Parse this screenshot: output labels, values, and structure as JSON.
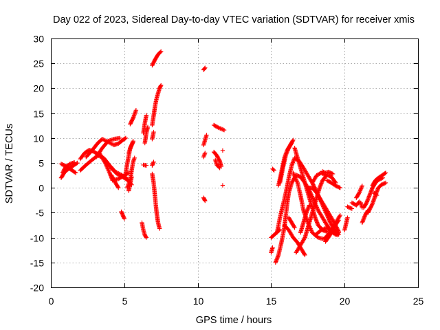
{
  "chart_data": {
    "type": "scatter",
    "title": "Day 022 of 2023, Sidereal Day-to-day VTEC variation (SDTVAR) for receiver xmis",
    "xlabel": "GPS time / hours",
    "ylabel": "SDTVAR / TECUs",
    "xlim": [
      0,
      25
    ],
    "ylim": [
      -20,
      30
    ],
    "xticks": [
      "0",
      "5",
      "10",
      "15",
      "20",
      "25"
    ],
    "yticks": [
      "-20",
      "-15",
      "-10",
      "-5",
      "0",
      "5",
      "10",
      "15",
      "20",
      "25",
      "30"
    ],
    "grid": true,
    "marker": "+",
    "color": "#ff0000",
    "segments": [
      [
        [
          0.7,
          2.0
        ],
        [
          0.9,
          3.0
        ],
        [
          1.1,
          3.6
        ],
        [
          1.4,
          4.2
        ],
        [
          1.8,
          5.0
        ]
      ],
      [
        [
          0.7,
          4.8
        ],
        [
          1.0,
          4.4
        ],
        [
          1.3,
          3.8
        ],
        [
          1.7,
          3.0
        ]
      ],
      [
        [
          0.8,
          3.0
        ],
        [
          1.0,
          4.2
        ],
        [
          1.3,
          4.8
        ],
        [
          1.6,
          5.1
        ]
      ],
      [
        [
          2.0,
          5.8
        ],
        [
          2.3,
          7.0
        ],
        [
          2.6,
          7.6
        ],
        [
          2.9,
          7.3
        ],
        [
          3.3,
          6.6
        ],
        [
          3.7,
          5.6
        ],
        [
          4.1,
          4.0
        ],
        [
          4.5,
          2.8
        ],
        [
          5.0,
          2.0
        ],
        [
          5.2,
          1.6
        ]
      ],
      [
        [
          2.0,
          3.5
        ],
        [
          2.4,
          4.6
        ],
        [
          2.8,
          5.6
        ],
        [
          3.2,
          6.5
        ],
        [
          3.6,
          6.0
        ],
        [
          4.0,
          4.5
        ],
        [
          4.4,
          3.2
        ],
        [
          4.8,
          2.6
        ],
        [
          5.2,
          1.8
        ],
        [
          5.5,
          0.6
        ]
      ],
      [
        [
          2.4,
          6.2
        ],
        [
          2.8,
          7.5
        ],
        [
          3.2,
          9.0
        ],
        [
          3.5,
          9.8
        ],
        [
          3.9,
          9.2
        ],
        [
          4.3,
          8.6
        ],
        [
          4.6,
          8.9
        ],
        [
          4.9,
          9.6
        ],
        [
          5.1,
          10.0
        ]
      ],
      [
        [
          3.3,
          7.0
        ],
        [
          3.7,
          5.0
        ],
        [
          4.0,
          3.0
        ],
        [
          4.2,
          1.5
        ],
        [
          4.6,
          1.8
        ],
        [
          5.0,
          2.5
        ],
        [
          5.3,
          3.0
        ]
      ],
      [
        [
          3.1,
          6.2
        ],
        [
          3.5,
          8.0
        ],
        [
          3.9,
          9.4
        ],
        [
          4.3,
          9.8
        ],
        [
          4.7,
          10.0
        ]
      ],
      [
        [
          4.1,
          2.6
        ],
        [
          4.4,
          1.0
        ],
        [
          4.6,
          0.0
        ]
      ],
      [
        [
          4.8,
          -4.8
        ],
        [
          4.9,
          -5.5
        ],
        [
          5.0,
          -6.2
        ]
      ],
      [
        [
          5.1,
          3.0
        ],
        [
          5.2,
          4.8
        ],
        [
          5.3,
          6.4
        ],
        [
          5.4,
          8.0
        ],
        [
          5.5,
          8.6
        ],
        [
          5.6,
          9.2
        ]
      ],
      [
        [
          5.2,
          0.0
        ],
        [
          5.4,
          1.6
        ],
        [
          5.5,
          3.5
        ],
        [
          5.6,
          5.2
        ],
        [
          5.7,
          6.0
        ]
      ],
      [
        [
          5.3,
          -0.6
        ],
        [
          5.4,
          0.8
        ],
        [
          5.5,
          2.2
        ]
      ],
      [
        [
          5.3,
          7.0
        ],
        [
          5.5,
          8.6
        ],
        [
          5.6,
          9.4
        ]
      ],
      [
        [
          5.4,
          12.8
        ],
        [
          5.6,
          14.0
        ],
        [
          5.8,
          15.6
        ]
      ],
      [
        [
          6.2,
          -7.0
        ],
        [
          6.3,
          -8.5
        ],
        [
          6.4,
          -9.5
        ],
        [
          6.5,
          -10.0
        ]
      ],
      [
        [
          6.3,
          4.6
        ],
        [
          6.5,
          4.5
        ]
      ],
      [
        [
          6.3,
          11.0
        ],
        [
          6.4,
          13.0
        ],
        [
          6.5,
          14.6
        ]
      ],
      [
        [
          6.4,
          9.0
        ],
        [
          6.5,
          11.0
        ],
        [
          6.6,
          12.2
        ]
      ],
      [
        [
          6.9,
          2.8
        ],
        [
          7.0,
          1.0
        ],
        [
          7.1,
          -2.0
        ],
        [
          7.2,
          -5.0
        ],
        [
          7.3,
          -7.0
        ],
        [
          7.4,
          -8.2
        ]
      ],
      [
        [
          6.9,
          12.6
        ],
        [
          7.0,
          14.5
        ],
        [
          7.1,
          16.5
        ],
        [
          7.2,
          18.0
        ],
        [
          7.3,
          19.0
        ],
        [
          7.4,
          20.0
        ],
        [
          7.5,
          20.6
        ]
      ],
      [
        [
          6.9,
          4.5
        ],
        [
          7.0,
          5.2
        ]
      ],
      [
        [
          6.9,
          9.8
        ],
        [
          7.0,
          11.2
        ]
      ],
      [
        [
          6.9,
          24.6
        ],
        [
          7.1,
          25.8
        ],
        [
          7.3,
          26.8
        ],
        [
          7.5,
          27.4
        ]
      ],
      [
        [
          10.4,
          -2.0
        ],
        [
          10.5,
          -2.6
        ]
      ],
      [
        [
          10.4,
          6.2
        ],
        [
          10.5,
          7.0
        ]
      ],
      [
        [
          10.4,
          8.6
        ],
        [
          10.5,
          9.6
        ],
        [
          10.6,
          10.6
        ]
      ],
      [
        [
          10.4,
          23.7
        ],
        [
          10.5,
          24.1
        ]
      ],
      [
        [
          11.1,
          12.6
        ],
        [
          11.4,
          12.1
        ],
        [
          11.8,
          11.6
        ]
      ],
      [
        [
          11.1,
          7.2
        ],
        [
          11.3,
          6.5
        ],
        [
          11.5,
          5.4
        ],
        [
          11.6,
          4.3
        ]
      ],
      [
        [
          11.2,
          5.6
        ],
        [
          11.3,
          4.6
        ],
        [
          11.5,
          4.0
        ]
      ],
      [
        [
          11.7,
          7.5
        ]
      ],
      [
        [
          11.7,
          0.5
        ]
      ],
      [
        [
          15.0,
          -13.0
        ],
        [
          15.1,
          -12.0
        ]
      ],
      [
        [
          15.0,
          -10.0
        ],
        [
          15.3,
          -9.2
        ],
        [
          15.6,
          -8.4
        ]
      ],
      [
        [
          15.1,
          3.8
        ],
        [
          15.2,
          3.5
        ]
      ],
      [
        [
          15.3,
          -15.0
        ],
        [
          15.5,
          -13.5
        ],
        [
          15.7,
          -11.0
        ],
        [
          15.9,
          -8.0
        ],
        [
          16.0,
          -5.5
        ],
        [
          16.1,
          -3.0
        ],
        [
          16.2,
          -1.0
        ],
        [
          16.4,
          1.0
        ],
        [
          16.7,
          2.6
        ],
        [
          17.0,
          2.2
        ],
        [
          17.3,
          1.0
        ],
        [
          17.6,
          -0.5
        ],
        [
          17.9,
          -2.5
        ],
        [
          18.2,
          -4.5
        ],
        [
          18.5,
          -6.0
        ],
        [
          18.8,
          -7.5
        ],
        [
          19.1,
          -8.8
        ],
        [
          19.4,
          -9.4
        ],
        [
          19.6,
          -9.0
        ]
      ],
      [
        [
          15.4,
          -9.0
        ],
        [
          15.6,
          -6.0
        ],
        [
          15.8,
          -3.5
        ],
        [
          16.0,
          -1.0
        ],
        [
          16.2,
          2.0
        ],
        [
          16.4,
          4.5
        ],
        [
          16.6,
          6.0
        ],
        [
          16.9,
          5.4
        ],
        [
          17.2,
          4.0
        ],
        [
          17.5,
          2.5
        ],
        [
          17.8,
          1.0
        ],
        [
          18.1,
          -0.8
        ],
        [
          18.4,
          -2.8
        ],
        [
          18.7,
          -4.8
        ],
        [
          19.0,
          -6.8
        ],
        [
          19.3,
          -8.4
        ],
        [
          19.6,
          -9.4
        ]
      ],
      [
        [
          15.5,
          0.5
        ],
        [
          15.7,
          3.2
        ],
        [
          15.9,
          6.0
        ],
        [
          16.1,
          7.6
        ],
        [
          16.3,
          8.6
        ],
        [
          16.5,
          9.6
        ]
      ],
      [
        [
          15.6,
          1.0
        ],
        [
          15.8,
          4.0
        ],
        [
          16.0,
          6.6
        ],
        [
          16.2,
          8.0
        ],
        [
          16.4,
          9.0
        ]
      ],
      [
        [
          15.9,
          -7.5
        ],
        [
          16.2,
          -8.5
        ],
        [
          16.5,
          -10.0
        ],
        [
          16.8,
          -11.0
        ],
        [
          17.1,
          -12.5
        ],
        [
          17.3,
          -13.5
        ]
      ],
      [
        [
          16.2,
          -6.0
        ],
        [
          16.4,
          -7.0
        ],
        [
          16.6,
          -8.0
        ]
      ],
      [
        [
          16.5,
          3.0
        ],
        [
          16.8,
          1.0
        ],
        [
          17.0,
          -1.5
        ],
        [
          17.2,
          -4.5
        ],
        [
          17.5,
          -7.0
        ],
        [
          17.8,
          -9.0
        ],
        [
          18.2,
          -10.0
        ],
        [
          18.6,
          -10.3
        ],
        [
          19.0,
          -9.0
        ],
        [
          19.4,
          -7.0
        ],
        [
          19.7,
          -5.5
        ]
      ],
      [
        [
          16.6,
          8.0
        ],
        [
          16.8,
          6.0
        ],
        [
          17.0,
          4.0
        ],
        [
          17.2,
          2.0
        ],
        [
          17.4,
          0.0
        ],
        [
          17.6,
          -2.0
        ],
        [
          17.8,
          -4.0
        ],
        [
          18.0,
          -6.0
        ],
        [
          18.2,
          -7.5
        ],
        [
          18.5,
          -8.5
        ],
        [
          18.8,
          -8.8
        ],
        [
          19.2,
          -9.0
        ]
      ],
      [
        [
          16.7,
          -13.0
        ],
        [
          17.0,
          -11.5
        ],
        [
          17.3,
          -10.0
        ],
        [
          17.5,
          -8.0
        ],
        [
          17.7,
          -6.0
        ],
        [
          17.9,
          -4.0
        ],
        [
          18.1,
          -2.0
        ],
        [
          18.3,
          0.0
        ],
        [
          18.5,
          1.5
        ],
        [
          18.8,
          2.6
        ],
        [
          19.1,
          2.2
        ],
        [
          19.4,
          1.0
        ]
      ],
      [
        [
          17.0,
          -9.0
        ],
        [
          17.2,
          -7.0
        ],
        [
          17.4,
          -5.0
        ],
        [
          17.6,
          -3.5
        ]
      ],
      [
        [
          17.5,
          0.0
        ],
        [
          17.8,
          0.0
        ],
        [
          18.1,
          -1.0
        ],
        [
          18.4,
          -2.5
        ],
        [
          18.7,
          -4.0
        ],
        [
          19.0,
          -5.5
        ],
        [
          19.3,
          -7.0
        ],
        [
          19.6,
          -8.8
        ]
      ],
      [
        [
          17.8,
          1.0
        ],
        [
          18.1,
          2.5
        ],
        [
          18.4,
          3.0
        ],
        [
          18.7,
          2.6
        ]
      ],
      [
        [
          18.0,
          -9.5
        ],
        [
          18.4,
          -8.5
        ],
        [
          18.8,
          -8.0
        ],
        [
          19.2,
          -8.8
        ],
        [
          19.5,
          -9.5
        ]
      ],
      [
        [
          18.7,
          -10.8
        ],
        [
          19.0,
          -9.5
        ],
        [
          19.3,
          -7.8
        ],
        [
          19.6,
          -6.5
        ]
      ],
      [
        [
          18.8,
          1.5
        ],
        [
          19.1,
          1.0
        ],
        [
          19.4,
          0.4
        ],
        [
          19.7,
          0.0
        ]
      ],
      [
        [
          18.5,
          3.3
        ],
        [
          18.7,
          3.0
        ],
        [
          18.9,
          3.2
        ],
        [
          19.2,
          2.8
        ]
      ],
      [
        [
          20.0,
          -8.5
        ],
        [
          20.2,
          -6.0
        ]
      ],
      [
        [
          20.2,
          -3.8
        ],
        [
          20.5,
          -4.2
        ]
      ],
      [
        [
          20.5,
          -3.0
        ],
        [
          20.8,
          -3.5
        ],
        [
          21.0,
          -2.8
        ]
      ],
      [
        [
          20.8,
          -2.0
        ],
        [
          21.0,
          -1.0
        ],
        [
          21.2,
          0.4
        ]
      ],
      [
        [
          21.1,
          -3.0
        ],
        [
          21.2,
          -4.0
        ]
      ],
      [
        [
          21.3,
          -4.0
        ],
        [
          21.5,
          -3.0
        ],
        [
          21.7,
          -1.5
        ],
        [
          21.9,
          0.0
        ],
        [
          22.1,
          1.0
        ],
        [
          22.3,
          1.6
        ],
        [
          22.6,
          2.0
        ]
      ],
      [
        [
          21.6,
          -5.0
        ],
        [
          21.9,
          -3.2
        ],
        [
          22.1,
          -1.5
        ],
        [
          22.3,
          0.0
        ],
        [
          22.5,
          0.6
        ],
        [
          22.8,
          1.0
        ]
      ],
      [
        [
          21.9,
          0.5
        ],
        [
          22.1,
          1.5
        ],
        [
          22.3,
          2.0
        ],
        [
          22.6,
          2.6
        ],
        [
          22.8,
          3.0
        ]
      ],
      [
        [
          22.0,
          -1.0
        ],
        [
          22.2,
          -1.5
        ]
      ],
      [
        [
          21.2,
          -7.0
        ],
        [
          21.4,
          -5.5
        ],
        [
          21.6,
          -4.5
        ]
      ]
    ]
  }
}
